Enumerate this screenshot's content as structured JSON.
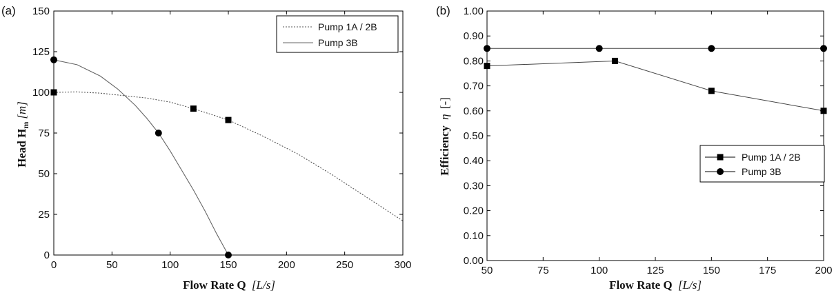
{
  "chart_data": [
    {
      "panel_label": "(a)",
      "type": "line",
      "xlabel_main": "Flow Rate Q",
      "xlabel_unit": "[L/s]",
      "ylabel_main": "Head H",
      "ylabel_sub": "m",
      "ylabel_unit": "[m]",
      "xlim": [
        0,
        300
      ],
      "ylim": [
        0,
        150
      ],
      "xticks": [
        "0",
        "50",
        "100",
        "150",
        "200",
        "250",
        "300"
      ],
      "yticks": [
        "0",
        "25",
        "50",
        "75",
        "100",
        "125",
        "150"
      ],
      "legend_position": "top-right",
      "series": [
        {
          "name": "Pump 1A / 2B",
          "style": "dotted",
          "curve_x": [
            0,
            20,
            40,
            60,
            80,
            100,
            120,
            150,
            180,
            210,
            240,
            270,
            300
          ],
          "curve_y": [
            100,
            100.3,
            99.5,
            98,
            96.5,
            94,
            90,
            83,
            73,
            62,
            49,
            35,
            21
          ],
          "markers": [
            {
              "x": 0,
              "y": 100
            },
            {
              "x": 120,
              "y": 90
            },
            {
              "x": 150,
              "y": 83
            }
          ],
          "marker": "square"
        },
        {
          "name": "Pump 3B",
          "style": "solid",
          "curve_x": [
            0,
            20,
            40,
            55,
            70,
            80,
            90,
            100,
            110,
            120,
            130,
            140,
            150
          ],
          "curve_y": [
            120,
            117,
            110,
            102,
            92,
            84,
            75,
            64,
            52,
            40,
            27,
            13,
            0
          ],
          "markers": [
            {
              "x": 0,
              "y": 120
            },
            {
              "x": 90,
              "y": 75
            },
            {
              "x": 150,
              "y": 0
            }
          ],
          "marker": "circle"
        }
      ]
    },
    {
      "panel_label": "(b)",
      "type": "line",
      "xlabel_main": "Flow Rate Q",
      "xlabel_unit": "[L/s]",
      "ylabel_main": "Efficiency",
      "ylabel_symbol": "η",
      "ylabel_unit": "[-]",
      "xlim": [
        50,
        200
      ],
      "ylim": [
        0,
        1
      ],
      "xticks": [
        "50",
        "75",
        "100",
        "125",
        "150",
        "175",
        "200"
      ],
      "yticks": [
        "0.00",
        "0.10",
        "0.20",
        "0.30",
        "0.40",
        "0.50",
        "0.60",
        "0.70",
        "0.80",
        "0.90",
        "1.00"
      ],
      "legend_position": "center-right",
      "series": [
        {
          "name": "Pump 1A / 2B",
          "marker": "square",
          "x": [
            50,
            107,
            150,
            200
          ],
          "y": [
            0.78,
            0.8,
            0.68,
            0.6
          ]
        },
        {
          "name": "Pump 3B",
          "marker": "circle",
          "x": [
            50,
            100,
            150,
            200
          ],
          "y": [
            0.85,
            0.85,
            0.85,
            0.85
          ]
        }
      ]
    }
  ]
}
